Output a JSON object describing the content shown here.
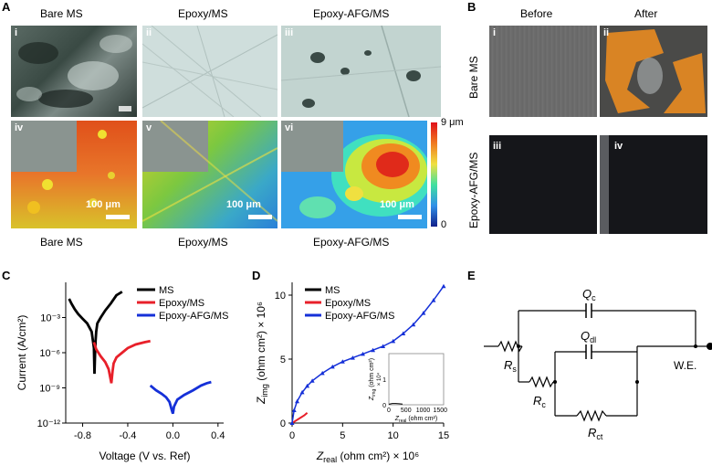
{
  "panels": {
    "A": {
      "letter": "A",
      "top_labels": [
        "Bare MS",
        "Epoxy/MS",
        "Epoxy-AFG/MS"
      ],
      "bottom_labels": [
        "Bare MS",
        "Epoxy/MS",
        "Epoxy-AFG/MS"
      ],
      "subpanels": [
        "i",
        "ii",
        "iii",
        "iv",
        "v",
        "vi"
      ],
      "scale_bar_labels": [
        "100 μm",
        "100 μm",
        "100 μm"
      ],
      "colorbar": {
        "max_label": "9 μm",
        "min_label": "0"
      },
      "colors": {
        "microscope_dark": "#3a4a44",
        "microscope_light": "#cfdedc",
        "profile_high": "#d94a1a",
        "profile_low": "#3aa0e0"
      }
    },
    "B": {
      "letter": "B",
      "col_labels": [
        "Before",
        "After"
      ],
      "row_labels": [
        "Bare MS",
        "Epoxy-AFG/MS"
      ],
      "subpanels": [
        "i",
        "ii",
        "iii",
        "iv"
      ],
      "colors": {
        "steel": "#6a6a6a",
        "rust": "#d98424",
        "coated": "#141418"
      }
    },
    "C": {
      "letter": "C",
      "legend": [
        "MS",
        "Epoxy/MS",
        "Epoxy-AFG/MS"
      ]
    },
    "D": {
      "letter": "D",
      "legend": [
        "MS",
        "Epoxy/MS",
        "Epoxy-AFG/MS"
      ]
    },
    "E": {
      "letter": "E",
      "elements": {
        "Qc_main": "Q",
        "Qc_sub": "c",
        "Qdl_main": "Q",
        "Qdl_sub": "dl",
        "Rs_main": "R",
        "Rs_sub": "s",
        "Rc_main": "R",
        "Rc_sub": "c",
        "Rct_main": "R",
        "Rct_sub": "ct",
        "we": "W.E."
      }
    }
  },
  "chart_data": [
    {
      "type": "line",
      "id": "C",
      "title": "",
      "xlabel": "Voltage (V vs. Ref)",
      "ylabel": "Current (A/cm²)",
      "xlim": [
        -0.95,
        0.45
      ],
      "ylim_log10": [
        -12,
        0
      ],
      "x_ticks": [
        "-0.8",
        "-0.4",
        "0.0",
        "0.4"
      ],
      "x_tick_values": [
        -0.8,
        -0.4,
        0.0,
        0.4
      ],
      "y_ticks": [
        "10⁻³",
        "10⁻⁶",
        "10⁻⁹",
        "10⁻¹²"
      ],
      "y_tick_values": [
        -3,
        -6,
        -9,
        -12
      ],
      "series": [
        {
          "name": "MS",
          "color": "#000000",
          "x": [
            -0.92,
            -0.9,
            -0.87,
            -0.84,
            -0.8,
            -0.76,
            -0.72,
            -0.7,
            -0.695,
            -0.69,
            -0.685,
            -0.68,
            -0.67,
            -0.64,
            -0.6,
            -0.55,
            -0.5,
            -0.45
          ],
          "log_y": [
            -1.4,
            -1.8,
            -2.3,
            -2.7,
            -3.1,
            -3.5,
            -4.2,
            -5.6,
            -7.8,
            -6.2,
            -5.0,
            -4.2,
            -3.5,
            -3.0,
            -2.4,
            -1.8,
            -1.1,
            -0.8
          ]
        },
        {
          "name": "Epoxy/MS",
          "color": "#e8202a",
          "x": [
            -0.7,
            -0.68,
            -0.64,
            -0.6,
            -0.57,
            -0.545,
            -0.535,
            -0.525,
            -0.5,
            -0.45,
            -0.4,
            -0.33,
            -0.25,
            -0.2
          ],
          "log_y": [
            -5.1,
            -5.7,
            -6.3,
            -6.8,
            -7.4,
            -8.6,
            -7.6,
            -6.9,
            -6.4,
            -6.0,
            -5.6,
            -5.3,
            -5.1,
            -5.0
          ]
        },
        {
          "name": "Epoxy-AFG/MS",
          "color": "#1530d8",
          "x": [
            -0.2,
            -0.15,
            -0.1,
            -0.06,
            -0.03,
            -0.01,
            0.0,
            0.01,
            0.04,
            0.1,
            0.18,
            0.25,
            0.3,
            0.34
          ],
          "log_y": [
            -8.8,
            -9.2,
            -9.5,
            -9.8,
            -10.2,
            -10.9,
            -11.2,
            -10.6,
            -10.0,
            -9.6,
            -9.2,
            -8.8,
            -8.6,
            -8.5
          ]
        }
      ]
    },
    {
      "type": "line",
      "id": "D",
      "title": "",
      "xlabel_main": "Z",
      "xlabel_sub": "real",
      "xlabel_rest": " (ohm cm²) × 10⁶",
      "ylabel_main": "Z",
      "ylabel_sub": "img",
      "ylabel_rest": " (ohm cm²) × 10⁶",
      "xlim": [
        0,
        15
      ],
      "ylim": [
        0,
        11
      ],
      "x_ticks": [
        "0",
        "5",
        "10",
        "15"
      ],
      "x_tick_values": [
        0,
        5,
        10,
        15
      ],
      "y_ticks": [
        "0",
        "5",
        "10"
      ],
      "y_tick_values": [
        0,
        5,
        10
      ],
      "series": [
        {
          "name": "MS",
          "color": "#000000",
          "x": [
            0,
            0.05,
            0.1
          ],
          "y": [
            0,
            0.02,
            0.03
          ]
        },
        {
          "name": "Epoxy/MS",
          "color": "#e8202a",
          "x": [
            0.1,
            0.4,
            0.8,
            1.2,
            1.5
          ],
          "y": [
            0.05,
            0.2,
            0.4,
            0.6,
            0.8
          ]
        },
        {
          "name": "Epoxy-AFG/MS",
          "color": "#1530d8",
          "x": [
            0,
            0.2,
            0.5,
            1,
            1.5,
            2,
            3,
            4,
            5,
            6,
            7,
            8,
            9,
            10,
            11,
            12,
            13,
            14,
            15
          ],
          "y": [
            0,
            1.0,
            1.7,
            2.4,
            2.9,
            3.3,
            3.9,
            4.4,
            4.8,
            5.1,
            5.4,
            5.7,
            6.0,
            6.4,
            7.0,
            7.7,
            8.6,
            9.6,
            10.7
          ]
        }
      ],
      "inset": {
        "xlabel_main": "Z",
        "xlabel_sub": "real",
        "xlabel_rest": " (ohm cm²)",
        "ylabel_main": "Z",
        "ylabel_sub": "img",
        "ylabel_rest": " (ohm cm²)",
        "ylabel_scale": "× 10⁴",
        "xlim": [
          0,
          1600
        ],
        "ylim": [
          0,
          2
        ],
        "x_ticks": [
          "0",
          "500",
          "1000",
          "1500"
        ],
        "x_tick_values": [
          0,
          500,
          1000,
          1500
        ],
        "y_ticks": [
          "0",
          "1"
        ],
        "y_tick_values": [
          0,
          1
        ],
        "series": [
          {
            "name": "MS",
            "color": "#000000",
            "x": [
              0,
              100,
              200,
              300,
              400
            ],
            "y": [
              0.02,
              0.05,
              0.05,
              0.04,
              0.03
            ]
          }
        ]
      }
    }
  ]
}
